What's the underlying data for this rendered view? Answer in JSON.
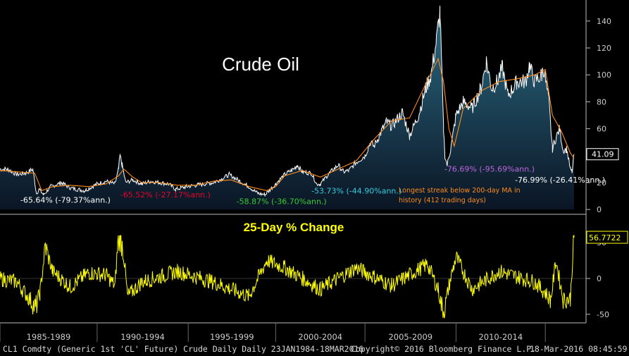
{
  "chart_data": [
    {
      "type": "line",
      "title": "Crude Oil",
      "y_ticks": [
        0,
        20,
        40,
        60,
        80,
        100,
        120,
        140
      ],
      "ylim": [
        -2,
        153
      ],
      "x_range": [
        1984.06,
        2016.21
      ],
      "last_value_label": "41.09",
      "series": [
        {
          "name": "",
          "color": "#ffffff",
          "x": [
            1984.06,
            1984.5,
            1985.0,
            1985.5,
            1985.9,
            1986.1,
            1986.25,
            1986.5,
            1986.9,
            1987.5,
            1988.0,
            1988.8,
            1989.5,
            1990.0,
            1990.5,
            1990.7,
            1990.78,
            1990.9,
            1991.1,
            1991.5,
            1992.0,
            1992.5,
            1993.0,
            1993.5,
            1993.9,
            1994.5,
            1995.0,
            1995.5,
            1996.0,
            1996.5,
            1996.9,
            1997.5,
            1998.0,
            1998.5,
            1998.9,
            1999.5,
            2000.0,
            2000.5,
            2000.7,
            2001.0,
            2001.5,
            2001.8,
            2002.0,
            2002.5,
            2003.0,
            2003.3,
            2003.6,
            2004.0,
            2004.5,
            2004.8,
            2005.0,
            2005.3,
            2005.7,
            2006.0,
            2006.6,
            2007.0,
            2007.5,
            2007.9,
            2008.2,
            2008.5,
            2008.7,
            2008.9,
            2008.98,
            2009.1,
            2009.3,
            2009.6,
            2010.0,
            2010.5,
            2011.0,
            2011.3,
            2011.6,
            2011.9,
            2012.2,
            2012.5,
            2012.8,
            2013.0,
            2013.5,
            2013.7,
            2014.0,
            2014.4,
            2014.5,
            2014.8,
            2015.0,
            2015.1,
            2015.4,
            2015.6,
            2015.8,
            2016.0,
            2016.1,
            2016.21
          ],
          "y": [
            30,
            30,
            26,
            27,
            30,
            12,
            15,
            11,
            17,
            20,
            16,
            14,
            19,
            21,
            19,
            30,
            40,
            33,
            20,
            22,
            19,
            21,
            20,
            19,
            15,
            17,
            18,
            19,
            20,
            23,
            26,
            21,
            17,
            12,
            11,
            19,
            26,
            30,
            33,
            28,
            27,
            19,
            19,
            27,
            33,
            28,
            29,
            35,
            40,
            50,
            47,
            55,
            65,
            62,
            72,
            55,
            70,
            90,
            100,
            125,
            147,
            60,
            40,
            33,
            45,
            70,
            80,
            75,
            90,
            110,
            90,
            95,
            105,
            85,
            90,
            95,
            95,
            107,
            95,
            100,
            105,
            80,
            45,
            50,
            60,
            44,
            45,
            30,
            28,
            41
          ],
          "labels": [
            {
              "text": "-65.64% (-79.37%ann.)",
              "color": "#ffffff",
              "x": 1985.2,
              "y": 5
            },
            {
              "text": "-65.52% (-27.17%ann.)",
              "color": "#e8002a",
              "x": 1990.8,
              "y": 9
            },
            {
              "text": "-58.87% (-36.70%ann.)",
              "color": "#33cc33",
              "x": 1997.3,
              "y": 4
            },
            {
              "text": "-53.73% (-44.90%ann.)",
              "color": "#33ccdd",
              "x": 2001.5,
              "y": 12
            },
            {
              "text": "-76.69% (-95.69%ann.)",
              "color": "#bb66dd",
              "x": 2008.95,
              "y": 28
            },
            {
              "text": "-76.99% (-26.41%ann.)",
              "color": "#ffffff",
              "x": 2012.9,
              "y": 20
            }
          ]
        },
        {
          "name": "",
          "color": "#ff8c1a",
          "x": [
            1984.06,
            1985.0,
            1986.0,
            1986.4,
            1987.0,
            1988.0,
            1989.0,
            1990.0,
            1990.7,
            1991.0,
            1991.5,
            1992.0,
            1993.0,
            1994.0,
            1995.0,
            1996.0,
            1997.0,
            1998.0,
            1999.0,
            1999.5,
            2000.0,
            2001.0,
            2002.0,
            2003.0,
            2004.0,
            2005.0,
            2006.0,
            2007.0,
            2008.0,
            2008.6,
            2008.9,
            2009.2,
            2009.5,
            2010.0,
            2011.0,
            2012.0,
            2013.0,
            2014.0,
            2014.6,
            2015.0,
            2015.5,
            2016.0,
            2016.21
          ],
          "y": [
            29,
            28,
            27,
            14,
            17,
            18,
            17,
            19,
            25,
            30,
            24,
            20,
            20,
            18,
            18,
            21,
            22,
            17,
            14,
            17,
            25,
            29,
            24,
            30,
            36,
            52,
            66,
            68,
            96,
            112,
            95,
            60,
            47,
            75,
            88,
            95,
            97,
            100,
            104,
            70,
            58,
            42,
            38
          ]
        }
      ],
      "annotations": [
        {
          "text": "Longest streak below 200-day MA in",
          "color": "#ff8c1a"
        },
        {
          "text": "history (412 trading days)",
          "color": "#ff8c1a"
        }
      ]
    },
    {
      "type": "line",
      "title": "25-Day % Change",
      "y_ticks": [
        -50,
        0,
        50
      ],
      "ylim": [
        -60,
        62
      ],
      "last_value_label": "56.7722",
      "series": [
        {
          "name": "",
          "color": "#ffff00",
          "x": [
            1984.06,
            1985.0,
            1985.9,
            1986.05,
            1986.3,
            1986.6,
            1987.0,
            1988.0,
            1989.0,
            1990.0,
            1990.5,
            1990.65,
            1990.8,
            1991.0,
            1991.2,
            1992.0,
            1994.0,
            1996.0,
            1998.0,
            1999.0,
            2000.0,
            2002.0,
            2004.0,
            2006.0,
            2008.0,
            2008.6,
            2008.8,
            2008.95,
            2009.2,
            2009.6,
            2010.5,
            2012.0,
            2014.0,
            2014.6,
            2014.9,
            2015.2,
            2015.6,
            2016.0,
            2016.1,
            2016.21
          ],
          "y": [
            0,
            -5,
            -35,
            -42,
            -20,
            45,
            10,
            -12,
            8,
            5,
            -10,
            45,
            65,
            30,
            -25,
            -5,
            10,
            -5,
            -25,
            25,
            15,
            -15,
            15,
            -10,
            20,
            -15,
            -40,
            -46,
            -10,
            30,
            -15,
            10,
            -5,
            -20,
            -30,
            25,
            -30,
            -28,
            15,
            57
          ]
        }
      ]
    }
  ],
  "x_axis": {
    "ticks": [
      "1985-1989",
      "1990-1994",
      "1995-1999",
      "2000-2004",
      "2005-2009",
      "2010-2014"
    ]
  },
  "footer": {
    "source": "CL1 Comdty (Generic 1st 'CL' Future) Crude Daily  Daily 23JAN1984-18MAR2016",
    "copyright": "Copyright© 2016 Bloomberg Finance L.P.",
    "timestamp": "18-Mar-2016 08:45:59"
  },
  "colors": {
    "background": "#000000",
    "price_panel": "#0d2233",
    "price_line": "#ffffff",
    "ma_line": "#ff8c1a",
    "change_line": "#ffff00",
    "axis": "#cccccc"
  }
}
